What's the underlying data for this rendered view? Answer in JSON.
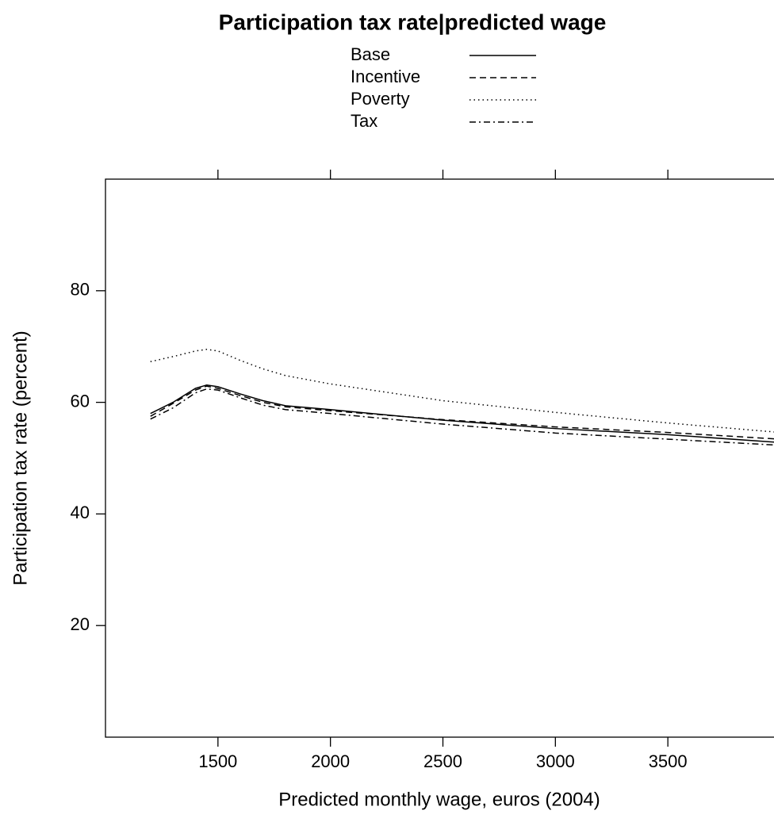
{
  "chart_data": {
    "type": "line",
    "title": "Participation tax rate|predicted wage",
    "xlabel": "Predicted monthly wage, euros (2004)",
    "ylabel": "Participation tax rate (percent)",
    "x": [
      1200,
      1300,
      1400,
      1450,
      1500,
      1600,
      1700,
      1800,
      2000,
      2500,
      3000,
      3500,
      4000
    ],
    "series": [
      {
        "name": "Base",
        "color": "#000000",
        "linestyle": "solid",
        "values": [
          58,
          60,
          62.5,
          63.1,
          62.8,
          61.5,
          60.3,
          59.4,
          58.7,
          56.8,
          55.3,
          54.2,
          52.8
        ]
      },
      {
        "name": "Incentive",
        "color": "#000000",
        "linestyle": "dashed",
        "values": [
          57.5,
          59.8,
          62.2,
          62.9,
          62.5,
          61.2,
          60,
          59.2,
          58.5,
          56.9,
          55.6,
          54.6,
          53.4
        ]
      },
      {
        "name": "Poverty",
        "color": "#000000",
        "linestyle": "dotted",
        "values": [
          67.3,
          68.2,
          69.2,
          69.5,
          69.2,
          67.5,
          66,
          64.8,
          63.3,
          60.3,
          58.2,
          56.3,
          54.6
        ]
      },
      {
        "name": "Tax",
        "color": "#000000",
        "linestyle": "dashdot",
        "values": [
          57,
          59,
          61.7,
          62.4,
          62.2,
          60.8,
          59.5,
          58.7,
          58,
          56.1,
          54.5,
          53.4,
          52.3
        ]
      }
    ],
    "xlim": [
      1000,
      4000
    ],
    "xticks": [
      1500,
      2000,
      2500,
      3000,
      3500
    ],
    "ylim": [
      0,
      100
    ],
    "yticks": [
      20,
      40,
      60,
      80
    ],
    "legend": "top"
  }
}
